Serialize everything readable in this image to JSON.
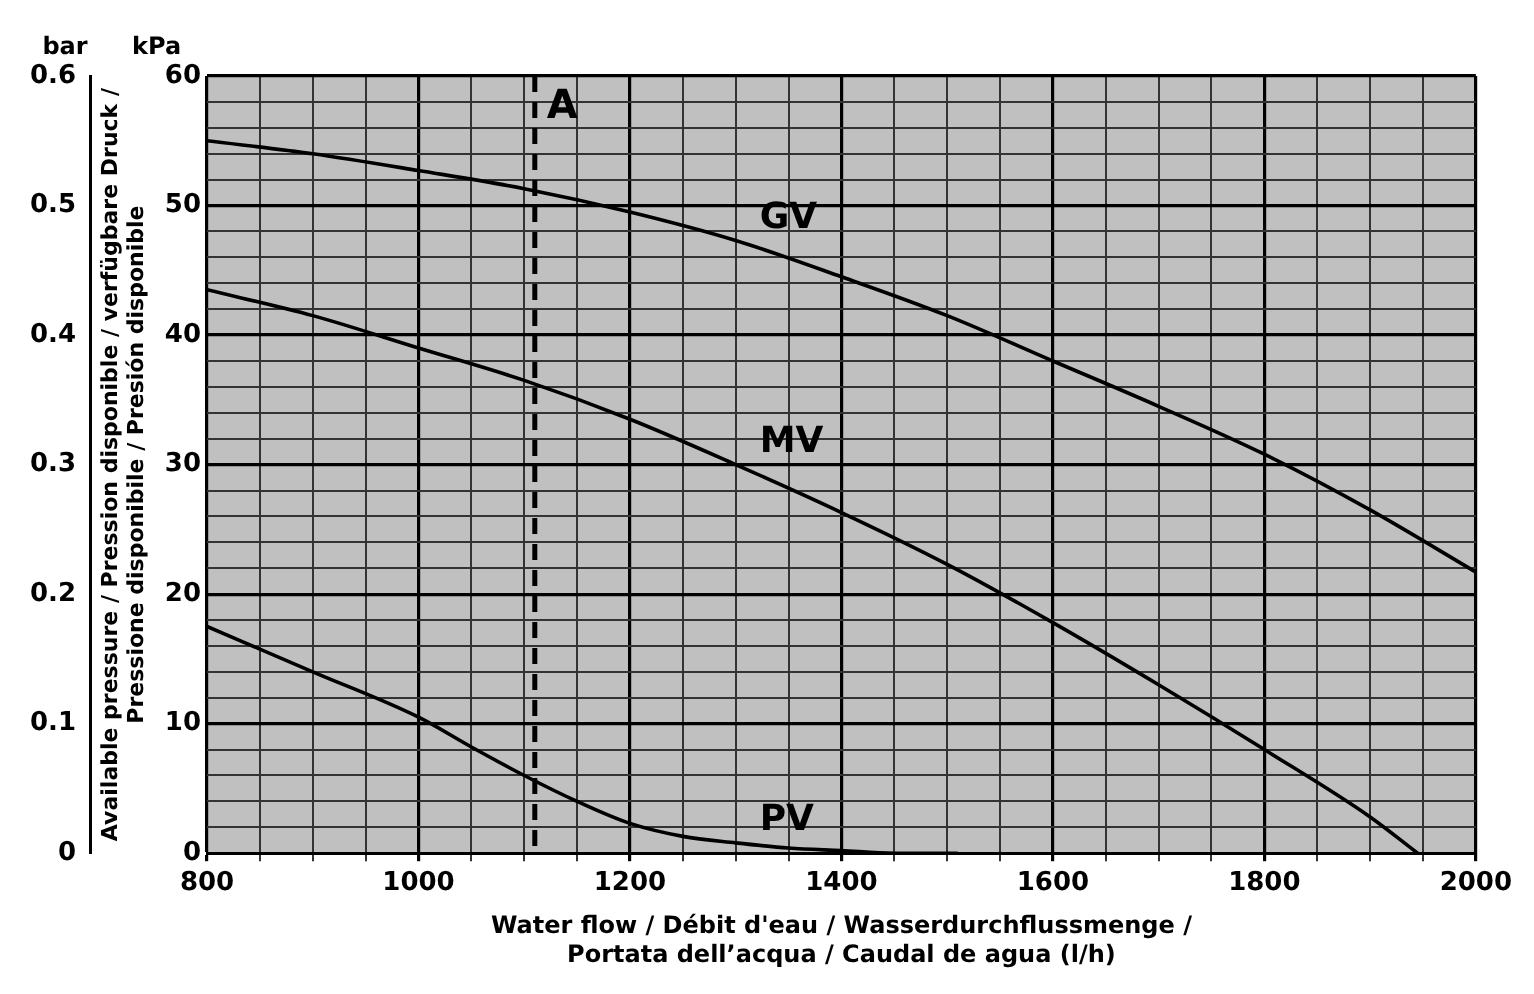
{
  "chart_data": {
    "type": "line",
    "xlabel": "Water flow / Débit d'eau / Wasserdurchflussmenge /\nPortata dell’acqua / Caudal de agua (l/h)",
    "ylabel": "Available pressure / Pression disponible / verfügbare Druck /\nPressione disponibile / Presión disponible",
    "annotations": [
      "kPa",
      "bar"
    ],
    "xlim": [
      800,
      2000
    ],
    "xticks": [
      800,
      {
        "value": 850,
        "label": null
      },
      {
        "value": 900,
        "label": null
      },
      {
        "value": 950,
        "label": null
      },
      1000,
      {
        "value": 1050,
        "label": null
      },
      {
        "value": 1100,
        "label": null
      },
      {
        "value": 1150,
        "label": null
      },
      1200,
      {
        "value": 1250,
        "label": null
      },
      {
        "value": 1300,
        "label": null
      },
      {
        "value": 1350,
        "label": null
      },
      1400,
      {
        "value": 1450,
        "label": null
      },
      {
        "value": 1500,
        "label": null
      },
      {
        "value": 1550,
        "label": null
      },
      1600,
      {
        "value": 1650,
        "label": null
      },
      {
        "value": 1700,
        "label": null
      },
      {
        "value": 1750,
        "label": null
      },
      1800,
      {
        "value": 1850,
        "label": null
      },
      {
        "value": 1900,
        "label": null
      },
      {
        "value": 1950,
        "label": null
      },
      2000
    ],
    "ylim": [
      0,
      60
    ],
    "yticks": [
      0,
      {
        "value": 2,
        "label": null
      },
      {
        "value": 4,
        "label": null
      },
      {
        "value": 6,
        "label": null
      },
      {
        "value": 8,
        "label": null
      },
      10,
      {
        "value": 12,
        "label": null
      },
      {
        "value": 14,
        "label": null
      },
      {
        "value": 16,
        "label": null
      },
      {
        "value": 18,
        "label": null
      },
      20,
      {
        "value": 22,
        "label": null
      },
      {
        "value": 24,
        "label": null
      },
      {
        "value": 26,
        "label": null
      },
      {
        "value": 28,
        "label": null
      },
      30,
      {
        "value": 32,
        "label": null
      },
      {
        "value": 34,
        "label": null
      },
      {
        "value": 36,
        "label": null
      },
      {
        "value": 38,
        "label": null
      },
      40,
      {
        "value": 42,
        "label": null
      },
      {
        "value": 44,
        "label": null
      },
      {
        "value": 46,
        "label": null
      },
      {
        "value": 48,
        "label": null
      },
      50,
      {
        "value": 52,
        "label": null
      },
      {
        "value": 54,
        "label": null
      },
      {
        "value": 56,
        "label": null
      },
      {
        "value": 58,
        "label": null
      },
      60
    ],
    "y2lim": [
      0,
      0.6
    ],
    "y2ticks": [
      0,
      0.1,
      0.2,
      0.3,
      0.4,
      0.5,
      0.6
    ],
    "grid": true,
    "legend": false,
    "marker": "none",
    "line_style": "solid",
    "ref_lines": [
      {
        "axis": "x",
        "value": 1110,
        "label": "A",
        "color": "#000000",
        "line_style": "dashed"
      }
    ],
    "series": [
      {
        "name": "GV",
        "color": "#000000",
        "x": [
          800,
          900,
          1000,
          1100,
          1200,
          1300,
          1400,
          1500,
          1600,
          1700,
          1800,
          1900,
          2000
        ],
        "values": [
          55,
          54,
          52.7,
          51.3,
          49.5,
          47.3,
          44.5,
          41.5,
          38,
          34.5,
          30.8,
          26.5,
          21.7
        ]
      },
      {
        "name": "MV",
        "color": "#000000",
        "x": [
          800,
          900,
          1000,
          1100,
          1200,
          1300,
          1400,
          1500,
          1600,
          1700,
          1800,
          1900,
          1945
        ],
        "values": [
          43.5,
          41.5,
          39,
          36.5,
          33.5,
          30,
          26.3,
          22.3,
          17.8,
          13,
          8,
          2.8,
          0
        ]
      },
      {
        "name": "PV",
        "color": "#000000",
        "x": [
          800,
          900,
          1000,
          1050,
          1100,
          1150,
          1200,
          1250,
          1300,
          1350,
          1400,
          1450,
          1510
        ],
        "values": [
          17.5,
          14,
          10.5,
          8.2,
          6,
          4,
          2.3,
          1.3,
          0.8,
          0.4,
          0.2,
          0,
          0
        ]
      }
    ]
  }
}
